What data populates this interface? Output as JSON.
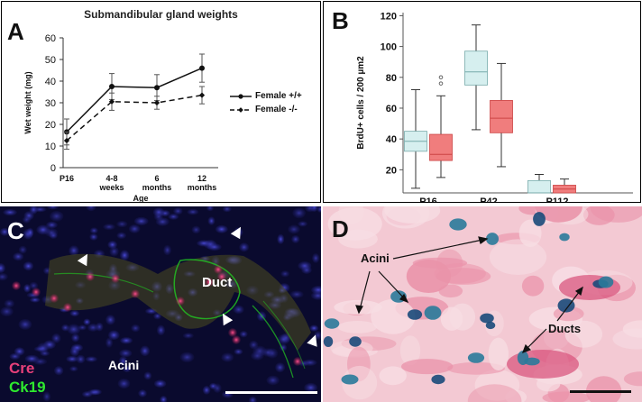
{
  "figure": {
    "panel_a_letter": "A",
    "panel_b_letter": "B",
    "panel_c_letter": "C",
    "panel_d_letter": "D"
  },
  "panel_a": {
    "title": "Submandibular gland weights",
    "legend": [
      "Female +/+",
      "Female -/-"
    ]
  },
  "panel_c": {
    "labels": {
      "cre": "Cre",
      "ck19": "Ck19",
      "duct": "Duct",
      "acini": "Acini"
    },
    "colors": {
      "cre": "#e8407a",
      "ck19": "#2ee82e",
      "background": "#0a0a2e"
    }
  },
  "panel_d": {
    "labels": {
      "acini": "Acini",
      "ducts": "Ducts"
    },
    "colors": {
      "background": "#f3c9d3",
      "stain": "#1a5a8a"
    }
  },
  "chart_data": [
    {
      "type": "line",
      "title": "Submandibular gland weights",
      "xlabel": "Age",
      "ylabel": "Wet weight (mg)",
      "categories": [
        "P16",
        "4-8 weeks",
        "6 months",
        "12 months"
      ],
      "category_lines": [
        [
          "P16"
        ],
        [
          "4-8",
          "weeks"
        ],
        [
          "6",
          "months"
        ],
        [
          "12",
          "months"
        ]
      ],
      "ylim": [
        0,
        60
      ],
      "yticks": [
        0,
        10,
        20,
        30,
        40,
        50,
        60
      ],
      "series": [
        {
          "name": "Female +/+",
          "values": [
            16.5,
            37.5,
            37,
            46
          ],
          "errors": [
            6,
            6,
            6,
            6.5
          ],
          "style": "solid",
          "marker": "circle"
        },
        {
          "name": "Female -/-",
          "values": [
            12.5,
            30.5,
            30,
            33.5
          ],
          "errors": [
            4,
            4,
            3,
            4
          ],
          "style": "dashed",
          "marker": "diamond"
        }
      ]
    },
    {
      "type": "box",
      "ylabel": "BrdU+ cells / 200 µm2",
      "ylim": [
        5,
        122
      ],
      "yticks": [
        20,
        40,
        60,
        80,
        100,
        120
      ],
      "categories": [
        "P16",
        "P42",
        "P112"
      ],
      "series_colors": [
        "#d6efef",
        "#f07d7d"
      ],
      "boxes": [
        {
          "group": 0,
          "series": 0,
          "min": 8,
          "q1": 32,
          "median": 38.5,
          "q3": 45,
          "max": 72
        },
        {
          "group": 0,
          "series": 1,
          "min": 15,
          "q1": 26,
          "median": 30,
          "q3": 43,
          "max": 68,
          "outliers": [
            76,
            80
          ]
        },
        {
          "group": 1,
          "series": 0,
          "min": 46,
          "q1": 75,
          "median": 83.5,
          "q3": 97,
          "max": 114
        },
        {
          "group": 1,
          "series": 1,
          "min": 22,
          "q1": 44,
          "median": 53.5,
          "q3": 65,
          "max": 89
        },
        {
          "group": 2,
          "series": 0,
          "min": 5,
          "q1": 5,
          "median": 5,
          "q3": 13,
          "max": 17
        },
        {
          "group": 2,
          "series": 1,
          "min": 5,
          "q1": 5,
          "median": 7.5,
          "q3": 10,
          "max": 14
        }
      ]
    }
  ]
}
